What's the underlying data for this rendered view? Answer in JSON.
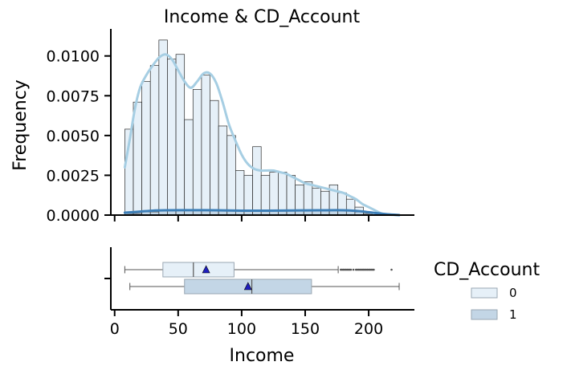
{
  "chart_data": [
    {
      "type": "histogram",
      "title": "Income & CD_Account",
      "xlabel": "",
      "ylabel": "Frequency",
      "xlim": [
        -3,
        236
      ],
      "ylim": [
        0,
        0.0117
      ],
      "xticks": [
        0,
        50,
        100,
        150,
        200
      ],
      "yticks": [
        0.0,
        0.0025,
        0.005,
        0.0075,
        0.01
      ],
      "ytick_labels": [
        "0.0000",
        "0.0025",
        "0.0050",
        "0.0075",
        "0.0100"
      ],
      "bin_start": 8,
      "bin_width": 6.71,
      "series": [
        {
          "name": "0",
          "color": "#e6f0f8",
          "kde_color": "#a6cee3",
          "values": [
            0.0054,
            0.0071,
            0.0084,
            0.0094,
            0.011,
            0.0098,
            0.0101,
            0.006,
            0.0079,
            0.0088,
            0.0072,
            0.0056,
            0.005,
            0.0028,
            0.0025,
            0.0043,
            0.0025,
            0.0027,
            0.0027,
            0.0025,
            0.0019,
            0.0021,
            0.0017,
            0.0015,
            0.0019,
            0.0014,
            0.001,
            0.0005,
            0.0002
          ],
          "kde": [
            [
              8,
              0.003
            ],
            [
              12,
              0.0048
            ],
            [
              16,
              0.0067
            ],
            [
              20,
              0.008
            ],
            [
              25,
              0.0088
            ],
            [
              30,
              0.0094
            ],
            [
              35,
              0.0099
            ],
            [
              40,
              0.0101
            ],
            [
              45,
              0.0098
            ],
            [
              50,
              0.0091
            ],
            [
              55,
              0.0084
            ],
            [
              60,
              0.008
            ],
            [
              65,
              0.0084
            ],
            [
              70,
              0.0089
            ],
            [
              75,
              0.0089
            ],
            [
              80,
              0.0083
            ],
            [
              85,
              0.0071
            ],
            [
              90,
              0.0057
            ],
            [
              95,
              0.0047
            ],
            [
              100,
              0.0038
            ],
            [
              105,
              0.0032
            ],
            [
              110,
              0.0029
            ],
            [
              115,
              0.0028
            ],
            [
              120,
              0.0028
            ],
            [
              125,
              0.0028
            ],
            [
              130,
              0.0027
            ],
            [
              135,
              0.0026
            ],
            [
              140,
              0.0024
            ],
            [
              145,
              0.0022
            ],
            [
              150,
              0.002
            ],
            [
              155,
              0.0019
            ],
            [
              160,
              0.0018
            ],
            [
              165,
              0.0017
            ],
            [
              170,
              0.0016
            ],
            [
              175,
              0.0015
            ],
            [
              180,
              0.0014
            ],
            [
              185,
              0.0012
            ],
            [
              190,
              0.001
            ],
            [
              195,
              0.0007
            ],
            [
              200,
              0.0005
            ],
            [
              205,
              0.0003
            ],
            [
              210,
              0.0001
            ],
            [
              215,
              3e-05
            ],
            [
              224,
              0.0
            ]
          ]
        },
        {
          "name": "1",
          "color": "#c3d6e6",
          "kde_color": "#3d7fb8",
          "values": [
            0.0001,
            0.0001,
            0.0002,
            0.0002,
            0.0003,
            0.0003,
            0.0003,
            0.0003,
            0.0003,
            0.0003,
            0.0003,
            0.0003,
            0.0003,
            0.0003,
            0.0003,
            0.0003,
            0.0003,
            0.0003,
            0.0003,
            0.0003,
            0.0003,
            0.0003,
            0.0003,
            0.0003,
            0.0003,
            0.0003,
            0.0003,
            0.0002,
            0.0001
          ],
          "kde": [
            [
              8,
              0.00015
            ],
            [
              20,
              0.00022
            ],
            [
              30,
              0.00028
            ],
            [
              40,
              0.0003
            ],
            [
              60,
              0.00031
            ],
            [
              80,
              0.0003
            ],
            [
              100,
              0.00028
            ],
            [
              120,
              0.00028
            ],
            [
              140,
              0.00029
            ],
            [
              160,
              0.0003
            ],
            [
              175,
              0.00031
            ],
            [
              185,
              0.00029
            ],
            [
              195,
              0.00023
            ],
            [
              205,
              0.00013
            ],
            [
              215,
              5e-05
            ],
            [
              224,
              0.0
            ]
          ]
        }
      ]
    },
    {
      "type": "boxplot",
      "xlabel": "Income",
      "xlim": [
        -3,
        236
      ],
      "xticks": [
        0,
        50,
        100,
        150,
        200
      ],
      "series": [
        {
          "name": "0",
          "color": "#e6f0f8",
          "whisker_low": 8,
          "q1": 38,
          "median": 62,
          "mean": 72,
          "q3": 94,
          "whisker_high": 176,
          "outliers": [
            178,
            179,
            180,
            181,
            182,
            183,
            184,
            185,
            186,
            188,
            190,
            191,
            192,
            193,
            194,
            195,
            196,
            197,
            198,
            199,
            200,
            201,
            202,
            203,
            204,
            218
          ]
        },
        {
          "name": "1",
          "color": "#c3d6e6",
          "whisker_low": 12,
          "q1": 55,
          "median": 108,
          "mean": 105,
          "q3": 155,
          "whisker_high": 224,
          "outliers": []
        }
      ]
    }
  ],
  "legend": {
    "title": "CD_Account",
    "placement": "right",
    "items": [
      {
        "label": "0",
        "color": "#e6f0f8"
      },
      {
        "label": "1",
        "color": "#c3d6e6"
      }
    ]
  }
}
